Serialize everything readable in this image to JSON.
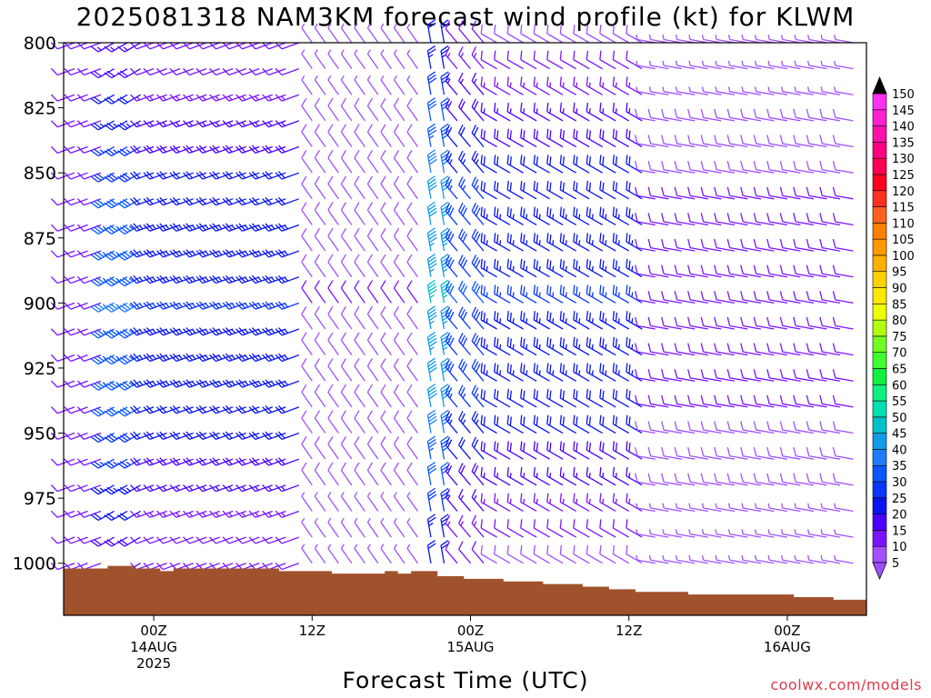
{
  "title": "2025081318 NAM3KM forecast wind profile (kt) for KLWM",
  "credit": "coolwx.com/models",
  "chart_data": {
    "type": "wind-barb-profile",
    "xlabel": "Forecast Time (UTC)",
    "ylabel": "",
    "y_axis": {
      "reversed": true,
      "ylim": [
        1020,
        800
      ],
      "ticks": [
        800,
        825,
        850,
        875,
        900,
        925,
        950,
        975,
        1000
      ]
    },
    "x_axis": {
      "ticks": [
        {
          "hour": 6,
          "label": "00Z",
          "date": "14AUG",
          "year": "2025"
        },
        {
          "hour": 18,
          "label": "12Z",
          "date": "",
          "year": ""
        },
        {
          "hour": 30,
          "label": "00Z",
          "date": "15AUG",
          "year": ""
        },
        {
          "hour": 42,
          "label": "12Z",
          "date": "",
          "year": ""
        },
        {
          "hour": 54,
          "label": "00Z",
          "date": "16AUG",
          "year": ""
        }
      ],
      "xlim": [
        0,
        60
      ]
    },
    "hours": [
      0,
      1,
      2,
      3,
      4,
      5,
      6,
      7,
      8,
      9,
      10,
      11,
      12,
      13,
      14,
      15,
      16,
      17,
      18,
      19,
      20,
      21,
      22,
      23,
      24,
      25,
      26,
      27,
      28,
      29,
      30,
      31,
      32,
      33,
      34,
      35,
      36,
      37,
      38,
      39,
      40,
      41,
      42,
      43,
      44,
      45,
      46,
      47,
      48,
      49,
      50,
      51,
      52,
      53,
      54,
      55,
      56,
      57,
      58,
      59
    ],
    "pressure_levels": [
      800,
      810,
      820,
      830,
      840,
      850,
      860,
      870,
      880,
      890,
      900,
      910,
      920,
      930,
      940,
      950,
      960,
      970,
      980,
      990,
      1000
    ],
    "surface_pressure": [
      1002,
      1002,
      1002,
      1001,
      1001,
      1002,
      1002,
      1003,
      1002,
      1002,
      1002,
      1002,
      1002,
      1002,
      1002,
      1002,
      1003,
      1003,
      1003,
      1003,
      1004,
      1004,
      1004,
      1004,
      1003,
      1004,
      1003,
      1003,
      1005,
      1005,
      1006,
      1006,
      1006,
      1007,
      1007,
      1007,
      1008,
      1008,
      1008,
      1009,
      1009,
      1010,
      1010,
      1011,
      1011,
      1011,
      1011,
      1012,
      1012,
      1012,
      1012,
      1012,
      1012,
      1012,
      1012,
      1013,
      1013,
      1013,
      1014,
      1014
    ],
    "colorbar": {
      "levels": [
        5,
        10,
        15,
        20,
        25,
        30,
        35,
        40,
        45,
        50,
        55,
        60,
        65,
        70,
        75,
        80,
        85,
        90,
        95,
        100,
        105,
        110,
        115,
        120,
        125,
        130,
        135,
        140,
        145,
        150
      ],
      "colors": [
        "#a050ff",
        "#7a14ff",
        "#4b00ff",
        "#0a14f0",
        "#0a36ff",
        "#0a58ff",
        "#1e7cff",
        "#109ce8",
        "#00c0c8",
        "#00e0b0",
        "#10f080",
        "#10f040",
        "#40ff30",
        "#70ff20",
        "#b4ff10",
        "#f0ff00",
        "#ffe800",
        "#ffd000",
        "#ffb000",
        "#ff9800",
        "#ff8000",
        "#ff6020",
        "#ff3020",
        "#ff0020",
        "#ff0050",
        "#ff0080",
        "#ff10a8",
        "#ff20d0",
        "#ff30f0",
        "#000000"
      ]
    },
    "wind_regimes": [
      {
        "hours": [
          0,
          3
        ],
        "direction_deg": 250,
        "speed_kt": [
          10,
          12
        ]
      },
      {
        "hours": [
          3,
          6
        ],
        "direction_deg": 240,
        "speed_kt": [
          15,
          35
        ]
      },
      {
        "hours": [
          6,
          18
        ],
        "direction_deg": 250,
        "speed_kt": [
          10,
          25
        ]
      },
      {
        "hours": [
          18,
          27
        ],
        "direction_deg": 325,
        "speed_kt": [
          6,
          10
        ]
      },
      {
        "hours": [
          27,
          29
        ],
        "direction_deg": 350,
        "speed_kt": [
          20,
          45
        ]
      },
      {
        "hours": [
          29,
          32
        ],
        "direction_deg": 320,
        "speed_kt": [
          10,
          30
        ]
      },
      {
        "hours": [
          32,
          44
        ],
        "direction_deg": 300,
        "speed_kt": [
          8,
          25
        ]
      },
      {
        "hours": [
          44,
          60
        ],
        "direction_deg": 280,
        "speed_kt": [
          5,
          12
        ]
      }
    ]
  }
}
